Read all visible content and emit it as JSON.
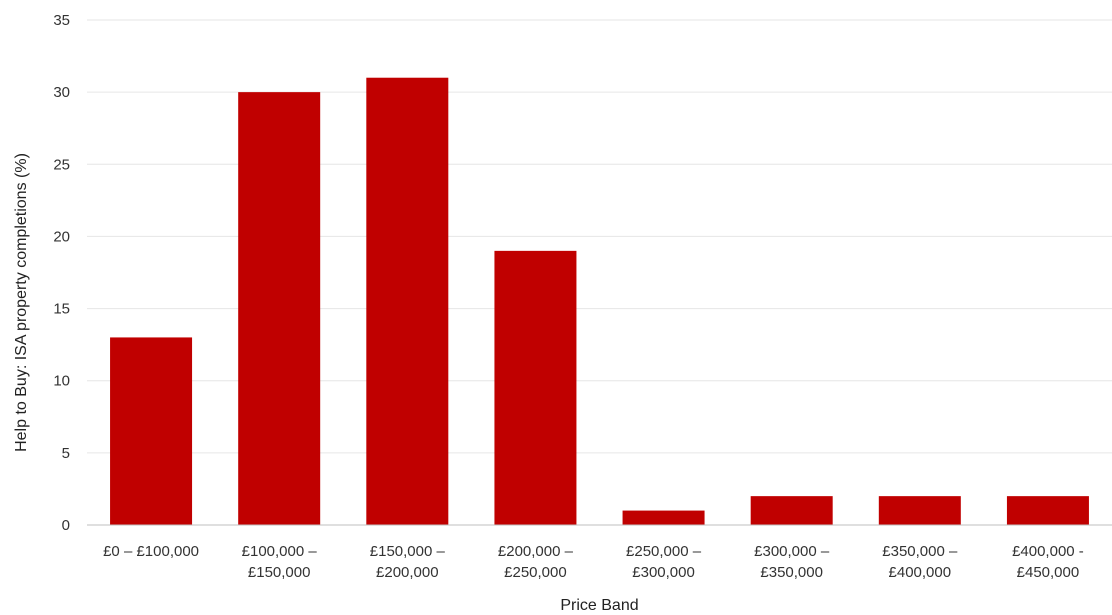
{
  "chart_data": {
    "type": "bar",
    "categories": [
      [
        "£0 – £100,000"
      ],
      [
        "£100,000 –",
        "£150,000"
      ],
      [
        "£150,000 –",
        "£200,000"
      ],
      [
        "£200,000 –",
        "£250,000"
      ],
      [
        "£250,000 –",
        "£300,000"
      ],
      [
        "£300,000 –",
        "£350,000"
      ],
      [
        "£350,000 –",
        "£400,000"
      ],
      [
        "£400,000 -",
        "£450,000"
      ]
    ],
    "values": [
      13,
      30,
      31,
      19,
      1,
      2,
      2,
      2
    ],
    "xlabel": "Price Band",
    "ylabel": "Help to Buy: ISA property completions (%)",
    "ylim": [
      0,
      35
    ],
    "yticks": [
      0,
      5,
      10,
      15,
      20,
      25,
      30,
      35
    ],
    "grid": true,
    "bar_color": "#c00000"
  }
}
